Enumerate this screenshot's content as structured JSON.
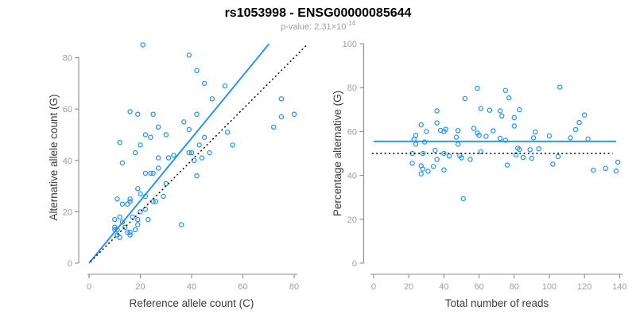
{
  "header": {
    "title": "rs1053998 - ENSG00000085644",
    "variant_id": "rs1053998",
    "gene_id": "ENSG00000085644",
    "subtitle_prefix": "p-value: ",
    "subtitle_value": "2.31",
    "subtitle_times": "×10",
    "subtitle_exponent": "-14"
  },
  "colors": {
    "accent_blue": "#1E90FF",
    "axis_gray": "#8c8c8c",
    "tick_label_gray": "#9e9e9e",
    "label_dark": "#3d3d3d",
    "dotted_black": "#000000",
    "background": "#ffffff"
  },
  "chart_data": [
    {
      "type": "scatter",
      "panel": "left",
      "xlabel": "Reference allele count (C)",
      "ylabel": "Alternative allele count (G)",
      "xlim": [
        0,
        85
      ],
      "ylim": [
        0,
        85
      ],
      "x_ticks": [
        0,
        20,
        40,
        60,
        80
      ],
      "y_ticks": [
        0,
        20,
        40,
        60,
        80
      ],
      "grid": false,
      "legend": "none",
      "points": [
        [
          21,
          85
        ],
        [
          39,
          81
        ],
        [
          42,
          75
        ],
        [
          45,
          70
        ],
        [
          53,
          69
        ],
        [
          48,
          64
        ],
        [
          75,
          64
        ],
        [
          16,
          59
        ],
        [
          19,
          58
        ],
        [
          25,
          58
        ],
        [
          42,
          58
        ],
        [
          80,
          58
        ],
        [
          75,
          57
        ],
        [
          37,
          55
        ],
        [
          27,
          53
        ],
        [
          72,
          53
        ],
        [
          39,
          52
        ],
        [
          54,
          51
        ],
        [
          22,
          50
        ],
        [
          30,
          50
        ],
        [
          24,
          49
        ],
        [
          45,
          49
        ],
        [
          12,
          47
        ],
        [
          20,
          46
        ],
        [
          56,
          46
        ],
        [
          43,
          46
        ],
        [
          18,
          43
        ],
        [
          39,
          43
        ],
        [
          40,
          43
        ],
        [
          47,
          43
        ],
        [
          44,
          41
        ],
        [
          33,
          42
        ],
        [
          31,
          41
        ],
        [
          27,
          41
        ],
        [
          41,
          40
        ],
        [
          13,
          39
        ],
        [
          27,
          37
        ],
        [
          42,
          34
        ],
        [
          22,
          35
        ],
        [
          24,
          35
        ],
        [
          25,
          35
        ],
        [
          30,
          31
        ],
        [
          19,
          29
        ],
        [
          22,
          26
        ],
        [
          29,
          26
        ],
        [
          11,
          25
        ],
        [
          16,
          25
        ],
        [
          16,
          24
        ],
        [
          13,
          23
        ],
        [
          15,
          23
        ],
        [
          25,
          24
        ],
        [
          26,
          24
        ],
        [
          22,
          21
        ],
        [
          20,
          20
        ],
        [
          20,
          27
        ],
        [
          10,
          17
        ],
        [
          12,
          18
        ],
        [
          17,
          18
        ],
        [
          13,
          16
        ],
        [
          19,
          17
        ],
        [
          23,
          17
        ],
        [
          19,
          15
        ],
        [
          36,
          15
        ],
        [
          14,
          14
        ],
        [
          10,
          14
        ],
        [
          10,
          13
        ],
        [
          11,
          13
        ],
        [
          11,
          11
        ],
        [
          18,
          13
        ],
        [
          15,
          12
        ],
        [
          16,
          12
        ],
        [
          16,
          11
        ],
        [
          12,
          10
        ]
      ],
      "lines": [
        {
          "name": "regression-line",
          "x1": 0,
          "y1": 0,
          "x2": 70.2,
          "y2": 85.4,
          "style": "solid",
          "color": "blue"
        },
        {
          "name": "identity-line",
          "x1": 0.6,
          "y1": 0.6,
          "x2": 85,
          "y2": 85,
          "style": "dotted",
          "color": "black"
        }
      ]
    },
    {
      "type": "scatter",
      "panel": "right",
      "xlabel": "Total number of reads",
      "ylabel": "Percentage alternative (G)",
      "xlim": [
        0,
        145
      ],
      "ylim": [
        0,
        100
      ],
      "x_ticks": [
        0,
        20,
        40,
        60,
        80,
        100,
        120,
        140
      ],
      "y_ticks": [
        0,
        20,
        40,
        60,
        80,
        100
      ],
      "grid": false,
      "legend": "none",
      "points": [
        [
          106,
          80.2
        ],
        [
          120,
          67.5
        ],
        [
          117,
          64.1
        ],
        [
          115,
          60.9
        ],
        [
          122,
          56.6
        ],
        [
          112,
          57.1
        ],
        [
          139,
          46
        ],
        [
          75,
          78.7
        ],
        [
          77,
          75.3
        ],
        [
          83,
          69.9
        ],
        [
          100,
          58
        ],
        [
          138,
          42
        ],
        [
          132,
          43.2
        ],
        [
          92,
          59.8
        ],
        [
          80,
          66.3
        ],
        [
          125,
          42.4
        ],
        [
          91,
          57.1
        ],
        [
          105,
          48.6
        ],
        [
          72,
          69.4
        ],
        [
          80,
          62.5
        ],
        [
          73,
          67.1
        ],
        [
          94,
          52.1
        ],
        [
          59,
          79.7
        ],
        [
          66,
          69.7
        ],
        [
          102,
          45.1
        ],
        [
          89,
          51.7
        ],
        [
          61,
          70.5
        ],
        [
          82,
          52.4
        ],
        [
          83,
          51.8
        ],
        [
          90,
          47.8
        ],
        [
          85,
          48.2
        ],
        [
          75,
          56
        ],
        [
          72,
          56.9
        ],
        [
          68,
          60.3
        ],
        [
          81,
          49.4
        ],
        [
          52,
          75
        ],
        [
          64,
          57.8
        ],
        [
          76,
          44.7
        ],
        [
          57,
          61.4
        ],
        [
          59,
          59.3
        ],
        [
          60,
          58.3
        ],
        [
          61,
          50.8
        ],
        [
          48,
          60.4
        ],
        [
          48,
          54.2
        ],
        [
          55,
          47.3
        ],
        [
          36,
          69.4
        ],
        [
          41,
          61
        ],
        [
          40,
          60
        ],
        [
          36,
          63.9
        ],
        [
          38,
          60.5
        ],
        [
          49,
          49
        ],
        [
          50,
          48
        ],
        [
          43,
          48.8
        ],
        [
          40,
          50
        ],
        [
          47,
          57.4
        ],
        [
          27,
          63
        ],
        [
          30,
          60
        ],
        [
          35,
          51.4
        ],
        [
          29,
          55.2
        ],
        [
          36,
          47.2
        ],
        [
          40,
          42.5
        ],
        [
          34,
          44.1
        ],
        [
          51,
          29.4
        ],
        [
          28,
          50
        ],
        [
          24,
          58.3
        ],
        [
          23,
          56.5
        ],
        [
          24,
          54.2
        ],
        [
          22,
          50
        ],
        [
          31,
          41.9
        ],
        [
          27,
          44.4
        ],
        [
          28,
          42.9
        ],
        [
          27,
          40.7
        ],
        [
          22,
          45.5
        ]
      ],
      "lines": [
        {
          "name": "fitted-percentage-line",
          "x1": 0,
          "y1": 55.5,
          "x2": 138,
          "y2": 55.5,
          "style": "solid",
          "color": "blue"
        },
        {
          "name": "null-fifty-line",
          "x1": -1,
          "y1": 50,
          "x2": 136,
          "y2": 50,
          "style": "dotted",
          "color": "black"
        }
      ]
    }
  ]
}
